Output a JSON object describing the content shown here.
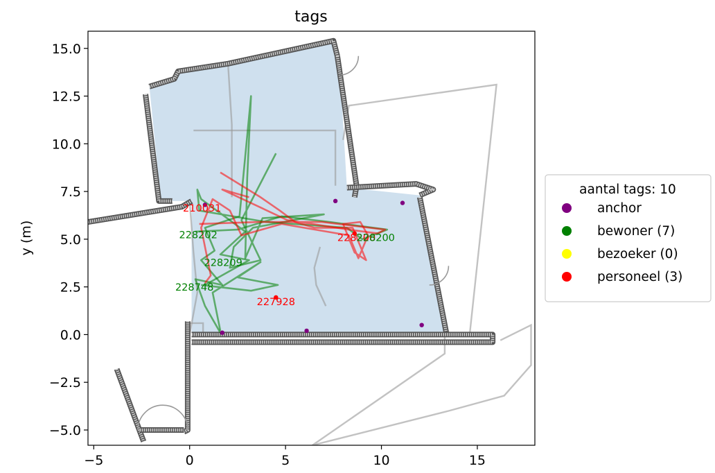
{
  "chart_data": {
    "type": "scatter",
    "title": "tags",
    "xlabel": "",
    "ylabel": "y (m)",
    "xlim": [
      -5.3,
      18.0
    ],
    "ylim": [
      -5.8,
      15.9
    ],
    "x_ticks": [
      -5,
      0,
      5,
      10,
      15
    ],
    "y_ticks": [
      -5.0,
      -2.5,
      0.0,
      2.5,
      5.0,
      7.5,
      10.0,
      12.5,
      15.0
    ],
    "x_tick_labels": [
      "−5",
      "0",
      "5",
      "10",
      "15"
    ],
    "y_tick_labels": [
      "−5.0",
      "−2.5",
      "0.0",
      "2.5",
      "5.0",
      "7.5",
      "10.0",
      "12.5",
      "15.0"
    ],
    "grid": false,
    "legend": {
      "title": "aantal tags: 10",
      "placement": "outside-right",
      "entries": [
        {
          "label": "anchor",
          "color": "#800080"
        },
        {
          "label": "bewoner (7)",
          "color": "#008000"
        },
        {
          "label": "bezoeker (0)",
          "color": "#ffff00"
        },
        {
          "label": "personeel (3)",
          "color": "#ff0000"
        }
      ]
    },
    "floor_area": {
      "color": "#cfe0ee",
      "outline": [
        [
          -2.1,
          13.0
        ],
        [
          -0.8,
          13.4
        ],
        [
          -0.6,
          13.8
        ],
        [
          2.0,
          14.2
        ],
        [
          7.5,
          15.4
        ],
        [
          7.8,
          14.6
        ],
        [
          8.2,
          7.7
        ],
        [
          12.0,
          7.3
        ],
        [
          13.4,
          0.0
        ],
        [
          0.1,
          0.0
        ],
        [
          0.1,
          7.0
        ],
        [
          -1.5,
          7.0
        ]
      ]
    },
    "anchors": {
      "name": "anchor",
      "color": "#800080",
      "points": [
        [
          0.8,
          6.8
        ],
        [
          7.6,
          7.0
        ],
        [
          11.1,
          6.9
        ],
        [
          12.1,
          0.5
        ],
        [
          6.1,
          0.2
        ],
        [
          1.7,
          0.1
        ]
      ]
    },
    "series": [
      {
        "name": "bewoner",
        "color": "#008000",
        "points": [
          [
            1.6,
            0.1
          ],
          [
            0.8,
            1.5
          ],
          [
            0.3,
            2.9
          ],
          [
            1.7,
            2.6
          ],
          [
            0.6,
            3.9
          ],
          [
            1.3,
            4.4
          ],
          [
            0.8,
            5.6
          ],
          [
            2.6,
            6.2
          ],
          [
            3.2,
            12.5
          ],
          [
            3.0,
            8.2
          ],
          [
            2.9,
            4.0
          ],
          [
            3.8,
            6.1
          ],
          [
            7.0,
            6.3
          ],
          [
            3.3,
            5.6
          ],
          [
            2.3,
            4.6
          ],
          [
            2.1,
            3.5
          ],
          [
            3.7,
            3.9
          ],
          [
            2.7,
            6.0
          ],
          [
            4.5,
            9.5
          ]
        ]
      },
      {
        "name": "bewoner",
        "color": "#008000",
        "points": [
          [
            0.3,
            5.4
          ],
          [
            2.5,
            5.5
          ],
          [
            4.8,
            6.2
          ],
          [
            7.3,
            5.9
          ],
          [
            10.3,
            5.5
          ],
          [
            9.0,
            5.0
          ],
          [
            8.2,
            5.6
          ],
          [
            4.0,
            5.9
          ],
          [
            0.5,
            6.5
          ],
          [
            0.4,
            7.6
          ],
          [
            0.6,
            7.1
          ],
          [
            2.9,
            5.4
          ],
          [
            1.6,
            4.2
          ],
          [
            3.1,
            3.9
          ],
          [
            0.8,
            2.6
          ]
        ]
      },
      {
        "name": "bewoner",
        "color": "#008000",
        "points": [
          [
            0.6,
            2.6
          ],
          [
            3.2,
            2.3
          ],
          [
            4.6,
            2.6
          ],
          [
            2.5,
            3.0
          ],
          [
            3.7,
            3.8
          ],
          [
            1.2,
            2.2
          ],
          [
            1.6,
            0.2
          ]
        ]
      },
      {
        "name": "personeel",
        "color": "#ff0000",
        "points": [
          [
            1.6,
            8.5
          ],
          [
            3.7,
            7.2
          ],
          [
            4.7,
            6.5
          ],
          [
            5.5,
            5.9
          ],
          [
            6.5,
            5.6
          ],
          [
            8.5,
            5.6
          ],
          [
            9.2,
            3.9
          ],
          [
            8.6,
            4.3
          ],
          [
            8.0,
            5.8
          ],
          [
            8.9,
            5.9
          ],
          [
            9.3,
            5.2
          ],
          [
            8.8,
            4.0
          ],
          [
            8.3,
            5.2
          ],
          [
            4.8,
            5.8
          ],
          [
            2.7,
            5.2
          ],
          [
            2.1,
            6.5
          ],
          [
            1.2,
            7.1
          ],
          [
            0.6,
            5.6
          ],
          [
            1.1,
            3.1
          ],
          [
            0.8,
            2.7
          ]
        ]
      },
      {
        "name": "personeel",
        "color": "#ff0000",
        "points": [
          [
            0.5,
            5.8
          ],
          [
            3.6,
            5.9
          ],
          [
            6.9,
            5.9
          ],
          [
            10.2,
            5.5
          ],
          [
            9.8,
            5.3
          ],
          [
            8.3,
            5.5
          ],
          [
            5.1,
            6.0
          ],
          [
            1.7,
            7.6
          ],
          [
            3.1,
            7.2
          ]
        ]
      }
    ],
    "tag_labels": [
      {
        "text": "210031",
        "x": -0.35,
        "y": 6.45,
        "color": "#ff0000"
      },
      {
        "text": "228202",
        "x": -0.55,
        "y": 5.05,
        "color": "#008000"
      },
      {
        "text": "228209",
        "x": 0.75,
        "y": 3.6,
        "color": "#008000"
      },
      {
        "text": "228748",
        "x": -0.75,
        "y": 2.3,
        "color": "#008000"
      },
      {
        "text": "227928",
        "x": 3.5,
        "y": 1.55,
        "color": "#ff0000"
      },
      {
        "text": "228200",
        "x": 7.7,
        "y": 4.9,
        "color": "#ff0000"
      },
      {
        "text": "228200",
        "x": 8.7,
        "y": 4.9,
        "color": "#008000"
      }
    ],
    "tag_dots": [
      {
        "x": 4.5,
        "y": 1.95,
        "color": "#ff0000"
      },
      {
        "x": 8.6,
        "y": 5.3,
        "color": "#ff0000"
      }
    ],
    "walls": [
      [
        [
          -2.1,
          13.0
        ],
        [
          -0.8,
          13.4
        ],
        [
          -0.6,
          13.8
        ],
        [
          2.0,
          14.2
        ],
        [
          7.5,
          15.4
        ],
        [
          7.7,
          14.6
        ]
      ],
      [
        [
          -2.3,
          12.6
        ],
        [
          -1.6,
          7.0
        ],
        [
          -0.9,
          7.0
        ]
      ],
      [
        [
          -5.3,
          5.9
        ],
        [
          -0.4,
          6.7
        ],
        [
          0.1,
          7.0
        ]
      ],
      [
        [
          7.7,
          14.6
        ],
        [
          8.7,
          7.8
        ],
        [
          8.6,
          7.2
        ]
      ],
      [
        [
          8.2,
          7.7
        ],
        [
          11.8,
          7.9
        ],
        [
          12.7,
          7.6
        ],
        [
          12.0,
          7.3
        ]
      ],
      [
        [
          12.0,
          7.2
        ],
        [
          13.4,
          0.0
        ]
      ],
      [
        [
          -0.1,
          0.7
        ],
        [
          -0.1,
          -5.0
        ],
        [
          -0.3,
          -5.1
        ]
      ],
      [
        [
          0.1,
          0.0
        ],
        [
          15.8,
          0.0
        ],
        [
          15.8,
          -0.4
        ],
        [
          0.1,
          -0.4
        ]
      ],
      [
        [
          -3.8,
          -1.8
        ],
        [
          -2.4,
          -5.6
        ]
      ],
      [
        [
          -2.6,
          -5.0
        ],
        [
          -0.3,
          -5.0
        ]
      ]
    ],
    "grey_outlines": [
      [
        [
          2.0,
          14.2
        ],
        [
          2.2,
          11.0
        ],
        [
          2.2,
          7.2
        ]
      ],
      [
        [
          0.2,
          10.7
        ],
        [
          7.6,
          10.7
        ],
        [
          7.6,
          9.5
        ],
        [
          7.6,
          7.8
        ]
      ],
      [
        [
          8.0,
          10.2
        ],
        [
          8.3,
          12.0
        ],
        [
          16.0,
          13.1
        ],
        [
          14.6,
          0.0
        ]
      ],
      [
        [
          13.3,
          0.0
        ],
        [
          13.3,
          -1.0
        ],
        [
          6.4,
          -5.8
        ],
        [
          13.5,
          -4.0
        ],
        [
          16.4,
          -3.2
        ],
        [
          17.8,
          -1.6
        ],
        [
          17.8,
          0.5
        ],
        [
          16.2,
          -0.3
        ]
      ],
      [
        [
          0.0,
          0.0
        ],
        [
          0.4,
          2.2
        ],
        [
          0.2,
          4.3
        ],
        [
          0.0,
          7.0
        ]
      ],
      [
        [
          7.1,
          1.5
        ],
        [
          6.6,
          2.6
        ],
        [
          6.5,
          3.5
        ],
        [
          6.8,
          4.6
        ]
      ],
      [
        [
          -0.1,
          0.6
        ],
        [
          0.7,
          0.6
        ],
        [
          0.7,
          0.1
        ]
      ]
    ],
    "door_arcs": [
      {
        "cx": 7.8,
        "cy": 14.6,
        "r": 1.0,
        "start": -90,
        "end": 0
      },
      {
        "cx": 12.5,
        "cy": 3.6,
        "r": 1.0,
        "start": -90,
        "end": 0
      },
      {
        "cx": -1.4,
        "cy": -5.0,
        "r": 1.3,
        "start": 0,
        "end": 180
      }
    ]
  }
}
